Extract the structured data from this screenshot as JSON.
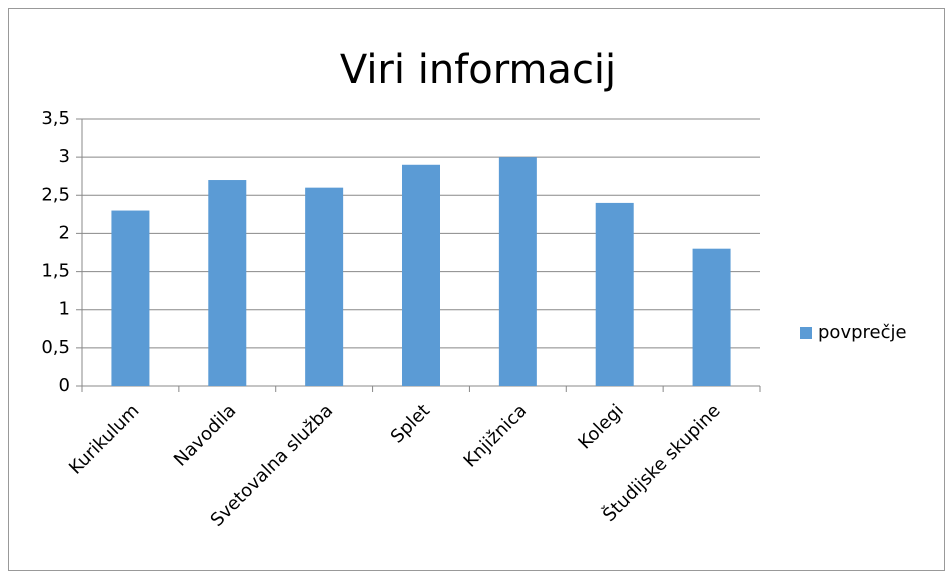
{
  "chart_data": {
    "type": "bar",
    "title": "Viri informacij",
    "categories": [
      "Kurikulum",
      "Navodila",
      "Svetovalna služba",
      "Splet",
      "Knjižnica",
      "Kolegi",
      "Študijske skupine"
    ],
    "series": [
      {
        "name": "povprečje",
        "color": "#5b9bd5",
        "values": [
          2.3,
          2.7,
          2.6,
          2.9,
          3.0,
          2.4,
          1.8
        ]
      }
    ],
    "ylim": [
      0,
      3.5
    ],
    "yticks": [
      0,
      {
        "value": 0.5,
        "label": "0,5"
      },
      1,
      {
        "value": 1.5,
        "label": "1,5"
      },
      2,
      {
        "value": 2.5,
        "label": "2,5"
      },
      3,
      {
        "value": 3.5,
        "label": "3,5"
      }
    ],
    "grid": true,
    "legend": "right"
  }
}
